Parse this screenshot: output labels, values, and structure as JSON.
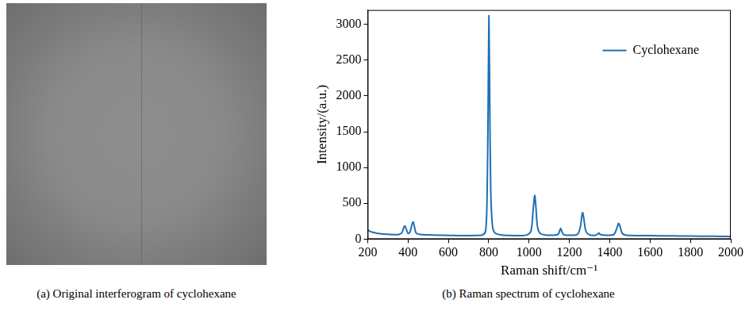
{
  "panel_a": {
    "caption": "(a) Original interferogram of cyclohexane"
  },
  "chart_data": {
    "type": "line",
    "caption": "(b) Raman spectrum of cyclohexane",
    "x_label": "Raman shift/cm⁻¹",
    "y_label": "Intensity/(a.u.)",
    "x": [
      200,
      210,
      225,
      250,
      275,
      300,
      330,
      355,
      370,
      380,
      385,
      390,
      400,
      410,
      420,
      426,
      432,
      440,
      460,
      500,
      550,
      600,
      650,
      700,
      740,
      770,
      785,
      792,
      797,
      801,
      805,
      810,
      818,
      830,
      860,
      900,
      950,
      990,
      1010,
      1020,
      1028,
      1034,
      1042,
      1055,
      1080,
      1120,
      1145,
      1152,
      1157,
      1162,
      1172,
      1200,
      1240,
      1255,
      1262,
      1266,
      1272,
      1282,
      1300,
      1330,
      1342,
      1347,
      1352,
      1380,
      1420,
      1435,
      1444,
      1452,
      1462,
      1480,
      1520,
      1600,
      1700,
      1800,
      1900,
      1950,
      2000
    ],
    "series": [
      {
        "name": "Cyclohexane",
        "color": "#1f6fb4",
        "values": [
          130,
          110,
          95,
          80,
          72,
          68,
          62,
          65,
          90,
          170,
          185,
          150,
          80,
          100,
          210,
          240,
          170,
          85,
          65,
          60,
          55,
          52,
          50,
          50,
          52,
          58,
          120,
          600,
          1800,
          3120,
          2000,
          700,
          200,
          90,
          60,
          52,
          50,
          58,
          120,
          400,
          610,
          450,
          170,
          80,
          58,
          55,
          70,
          120,
          150,
          110,
          60,
          55,
          65,
          180,
          330,
          370,
          280,
          110,
          60,
          55,
          75,
          85,
          65,
          55,
          65,
          150,
          220,
          170,
          80,
          55,
          50,
          48,
          45,
          42,
          40,
          38,
          35
        ]
      }
    ],
    "xlim": [
      200,
      2000
    ],
    "xticks": [
      200,
      400,
      600,
      800,
      1000,
      1200,
      1400,
      1600,
      1800,
      2000
    ],
    "ylim": [
      0,
      3200
    ],
    "yticks": [
      0,
      500,
      1000,
      1500,
      2000,
      2500,
      3000
    ],
    "grid": false,
    "legend": "upper right"
  }
}
